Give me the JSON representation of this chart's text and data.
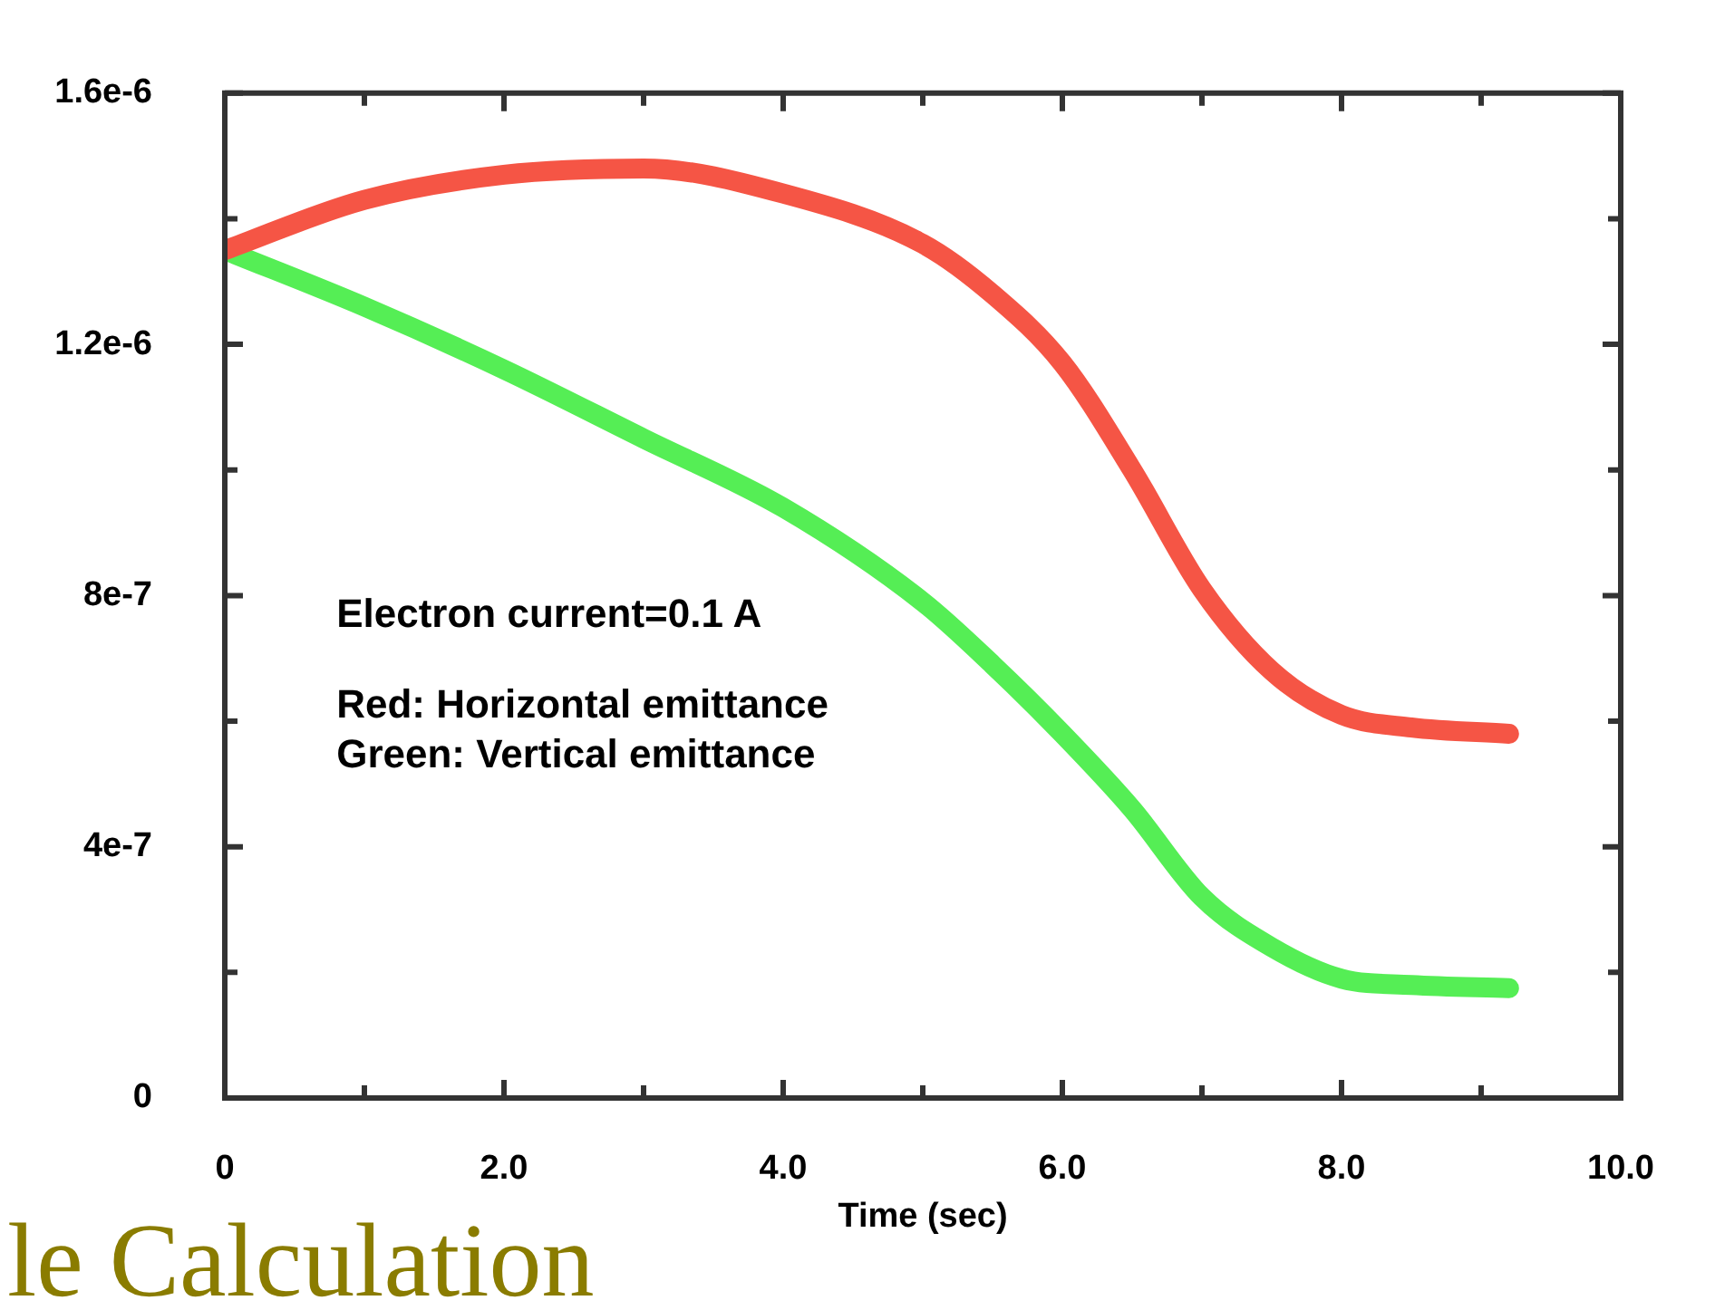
{
  "chart_data": {
    "type": "line",
    "xlabel": "Time (sec)",
    "x": [
      0,
      1,
      2,
      3,
      4,
      5,
      5.5,
      6,
      6.5,
      7,
      7.5,
      8,
      8.5,
      9.2
    ],
    "series": [
      {
        "color": "#f55545",
        "values": [
          1.35e-06,
          1.43e-06,
          1.47e-06,
          1.48e-06,
          1.44e-06,
          1.36e-06,
          1.28e-06,
          1.17e-06,
          1e-06,
          8.1e-07,
          6.8e-07,
          6.1e-07,
          5.9e-07,
          5.8e-07
        ]
      },
      {
        "color": "#55ee55",
        "values": [
          1.35e-06,
          1.26e-06,
          1.16e-06,
          1.05e-06,
          9.4e-07,
          7.9e-07,
          6.9e-07,
          5.8e-07,
          4.6e-07,
          3.2e-07,
          2.4e-07,
          1.9e-07,
          1.8e-07,
          1.75e-07
        ]
      }
    ],
    "xlim": [
      0,
      10
    ],
    "xticks": [
      0,
      {
        "value": 1,
        "label": null
      },
      {
        "value": 2,
        "label": "2.0"
      },
      {
        "value": 3,
        "label": null
      },
      {
        "value": 4,
        "label": "4.0"
      },
      {
        "value": 5,
        "label": null
      },
      {
        "value": 6,
        "label": "6.0"
      },
      {
        "value": 7,
        "label": null
      },
      {
        "value": 8,
        "label": "8.0"
      },
      {
        "value": 9,
        "label": null
      },
      {
        "value": 10,
        "label": "10.0"
      }
    ],
    "ylim": [
      0,
      1.6e-06
    ],
    "yticks": [
      0,
      {
        "value": 2e-07,
        "label": null
      },
      {
        "value": 4e-07,
        "label": "4e-7"
      },
      {
        "value": 6e-07,
        "label": null
      },
      {
        "value": 8e-07,
        "label": "8e-7"
      },
      {
        "value": 1e-06,
        "label": null
      },
      {
        "value": 1.2e-06,
        "label": "1.2e-6"
      },
      {
        "value": 1.4e-06,
        "label": null
      },
      {
        "value": 1.6e-06,
        "label": "1.6e-6"
      }
    ],
    "annotations": [
      "Electron current=0.1 A",
      "Red: Horizontal emittance",
      "Green: Vertical emittance",
      "le Calculation"
    ],
    "grid": false,
    "legend": false,
    "marker": "none",
    "line_style": "solid"
  }
}
